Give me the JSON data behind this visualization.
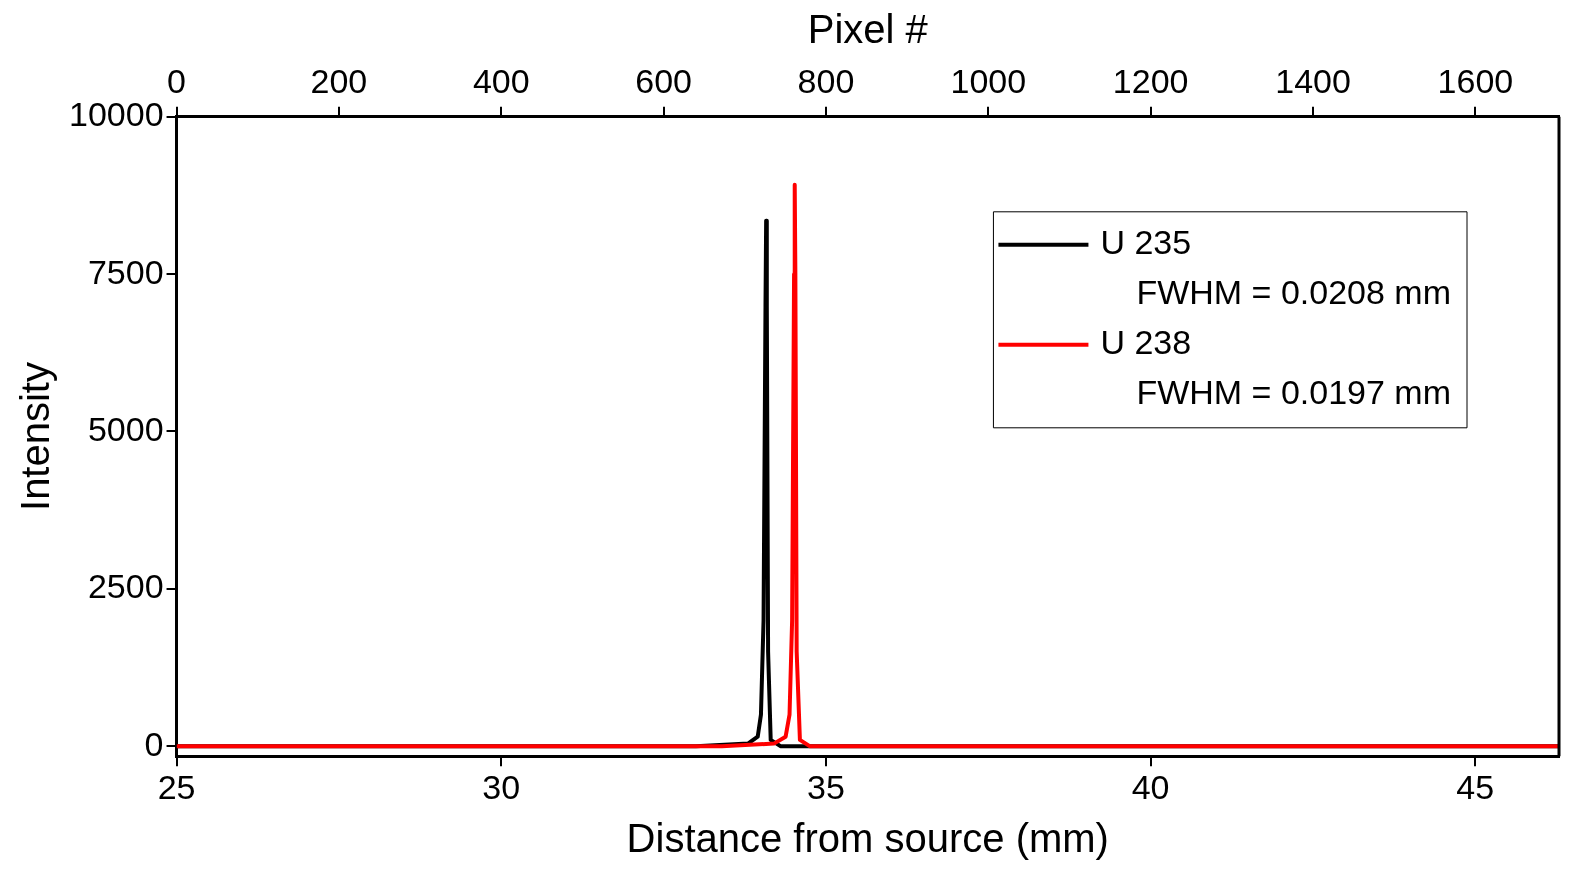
{
  "chart_data": {
    "type": "line",
    "xlabel": "Distance from source (mm)",
    "ylabel": "Intensity",
    "x2label": "Pixel #",
    "xlim": [
      25,
      46.29
    ],
    "xticks": [
      25,
      30,
      35,
      40,
      45
    ],
    "x2lim": [
      0,
      1703
    ],
    "x2ticks": [
      0,
      200,
      400,
      600,
      800,
      1000,
      1200,
      1400,
      1600
    ],
    "ylim": [
      -160,
      10000
    ],
    "yticks": [
      0,
      2500,
      5000,
      7500,
      10000
    ],
    "grid": false,
    "legend": "top right",
    "marker": "none",
    "line_style": "solid",
    "annotations": [
      "FWHM = 0.0208 mm",
      "FWHM = 0.0197 mm"
    ],
    "series": [
      {
        "name": "U 235",
        "color": "#000000",
        "x": [
          25,
          33,
          33.8,
          33.95,
          34.0,
          34.04,
          34.07,
          34.08,
          34.09,
          34.11,
          34.15,
          34.3,
          46.29
        ],
        "values": [
          0,
          0,
          40,
          150,
          500,
          2000,
          7000,
          8350,
          7000,
          1500,
          100,
          0,
          0
        ]
      },
      {
        "name": "U 238",
        "color": "#ff0000",
        "x": [
          25,
          33.4,
          34.2,
          34.38,
          34.44,
          34.48,
          34.51,
          34.52,
          34.53,
          34.55,
          34.6,
          34.75,
          46.29
        ],
        "values": [
          0,
          0,
          40,
          150,
          500,
          2000,
          7500,
          8920,
          7500,
          1500,
          100,
          0,
          0
        ]
      }
    ]
  }
}
